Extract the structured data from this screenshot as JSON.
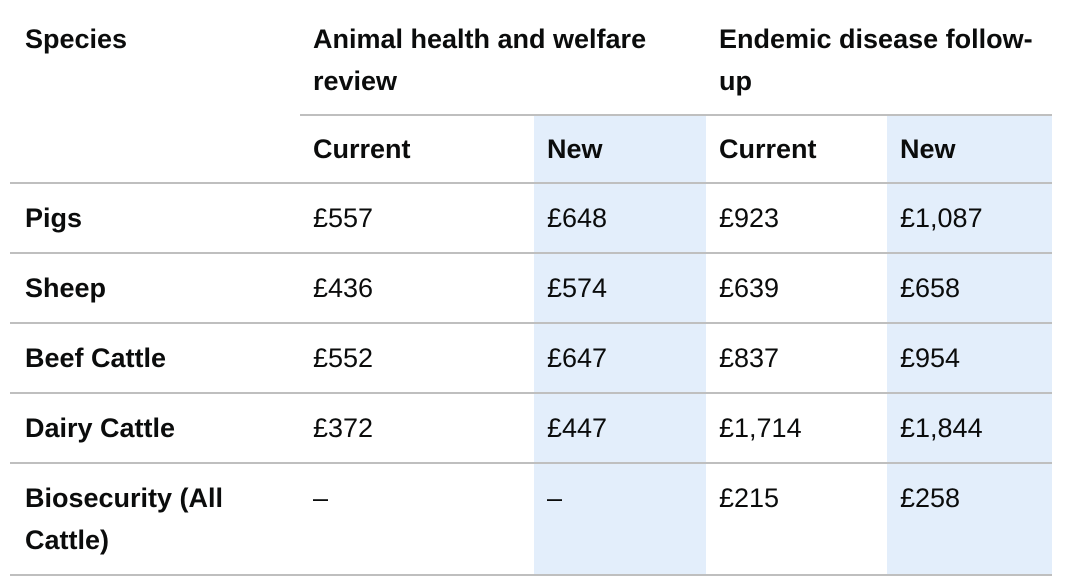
{
  "table": {
    "header": {
      "species": "Species",
      "groups": [
        {
          "label": "Animal health and welfare review",
          "sub": [
            "Current",
            "New"
          ]
        },
        {
          "label": "Endemic disease follow-up",
          "sub": [
            "Current",
            "New"
          ]
        }
      ]
    },
    "rows": [
      {
        "species": "Pigs",
        "values": [
          "£557",
          "£648",
          "£923",
          "£1,087"
        ]
      },
      {
        "species": "Sheep",
        "values": [
          "£436",
          "£574",
          "£639",
          "£658"
        ]
      },
      {
        "species": "Beef Cattle",
        "values": [
          "£552",
          "£647",
          "£837",
          "£954"
        ]
      },
      {
        "species": "Dairy Cattle",
        "values": [
          "£372",
          "£447",
          "£1,714",
          "£1,844"
        ]
      },
      {
        "species": "Biosecurity (All Cattle)",
        "values": [
          "–",
          "–",
          "£215",
          "£258"
        ]
      }
    ],
    "colors": {
      "text": "#0b0c0c",
      "border": "#bfbfbf",
      "highlight": "#e3eefb",
      "background": "#ffffff"
    }
  }
}
